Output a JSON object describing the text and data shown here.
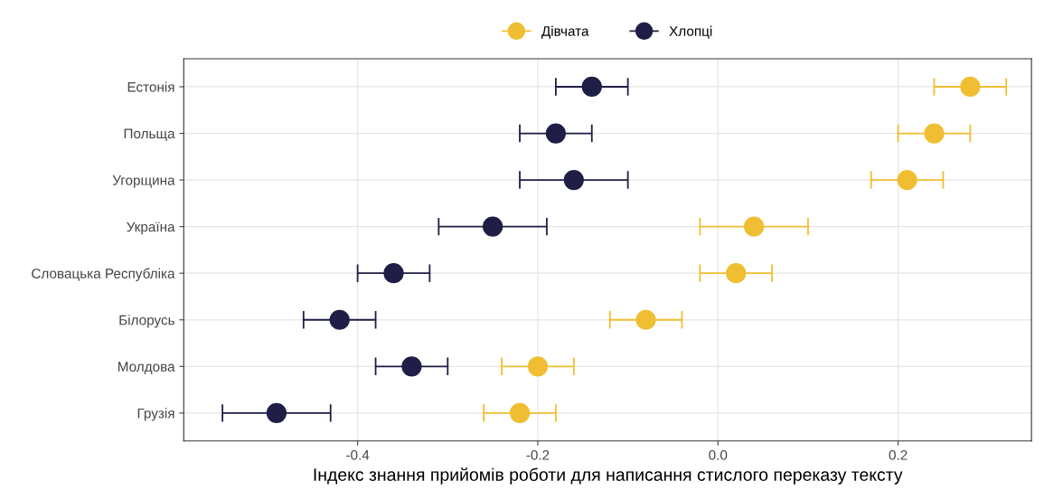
{
  "chart_data": {
    "type": "scatter",
    "orientation": "horizontal",
    "xlabel": "Індекс знання прийомів роботи для написання стислого переказу тексту",
    "categories": [
      "Естонія",
      "Польща",
      "Угорщина",
      "Україна",
      "Словацька Республіка",
      "Білорусь",
      "Молдова",
      "Грузія"
    ],
    "series": [
      {
        "name": "Дівчата",
        "color": "#f0be32",
        "values": [
          0.28,
          0.24,
          0.21,
          0.04,
          0.02,
          -0.08,
          -0.2,
          -0.22
        ],
        "errors": [
          [
            0.24,
            0.32
          ],
          [
            0.2,
            0.28
          ],
          [
            0.17,
            0.25
          ],
          [
            -0.02,
            0.1
          ],
          [
            -0.02,
            0.06
          ],
          [
            -0.12,
            -0.04
          ],
          [
            -0.24,
            -0.16
          ],
          [
            -0.26,
            -0.18
          ]
        ]
      },
      {
        "name": "Хлопці",
        "color": "#1e1e46",
        "values": [
          -0.14,
          -0.18,
          -0.16,
          -0.25,
          -0.36,
          -0.42,
          -0.34,
          -0.49
        ],
        "errors": [
          [
            -0.18,
            -0.1
          ],
          [
            -0.22,
            -0.14
          ],
          [
            -0.22,
            -0.1
          ],
          [
            -0.31,
            -0.19
          ],
          [
            -0.4,
            -0.32
          ],
          [
            -0.46,
            -0.38
          ],
          [
            -0.38,
            -0.3
          ],
          [
            -0.55,
            -0.43
          ]
        ]
      }
    ],
    "xlim": [
      -0.593,
      0.348
    ],
    "xticks": [
      {
        "value": -0.4,
        "label": "-0.4"
      },
      {
        "value": -0.2,
        "label": "-0.2"
      },
      {
        "value": 0,
        "label": "0.0"
      },
      {
        "value": 0.2,
        "label": "0.2"
      }
    ],
    "grid": true,
    "legend": "top",
    "marker": "circle"
  }
}
